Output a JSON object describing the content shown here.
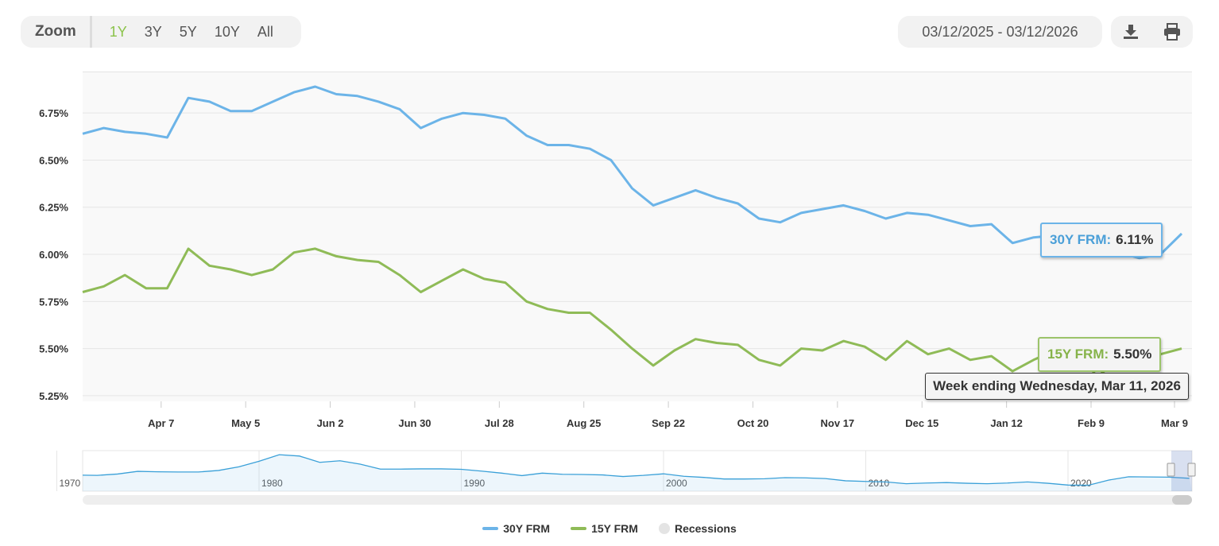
{
  "toolbar": {
    "zoom_label": "Zoom",
    "zoom_options": [
      "1Y",
      "3Y",
      "5Y",
      "10Y",
      "All"
    ],
    "active_zoom": "1Y",
    "date_range": "03/12/2025 - 03/12/2026",
    "download_icon": "download-icon",
    "print_icon": "print-icon"
  },
  "colors": {
    "series_30y": "#6cb4e8",
    "series_15y": "#8fbb57",
    "accent": "#8bc34a"
  },
  "tooltip": {
    "label_30y": "30Y FRM:",
    "value_30y": "6.11%",
    "label_15y": "15Y FRM:",
    "value_15y": "5.50%",
    "date": "Week ending Wednesday, Mar 11, 2026"
  },
  "legend": {
    "items": [
      "30Y FRM",
      "15Y FRM",
      "Recessions"
    ]
  },
  "chart_data": {
    "type": "line",
    "ylim": [
      5.22,
      6.97
    ],
    "y_ticks": [
      "5.25%",
      "5.50%",
      "5.75%",
      "6.00%",
      "6.25%",
      "6.50%",
      "6.75%"
    ],
    "y_tick_values": [
      5.25,
      5.5,
      5.75,
      6.0,
      6.25,
      6.5,
      6.75
    ],
    "x_start": "2025-03-12",
    "x_end": "2026-03-11",
    "x_step_days": 7,
    "x_ticks": [
      "Apr 7",
      "May 5",
      "Jun 2",
      "Jun 30",
      "Jul 28",
      "Aug 25",
      "Sep 22",
      "Oct 20",
      "Nov 17",
      "Dec 15",
      "Jan 12",
      "Feb 9",
      "Mar 9"
    ],
    "x_tick_dates": [
      "2025-04-07",
      "2025-05-05",
      "2025-06-02",
      "2025-06-30",
      "2025-07-28",
      "2025-08-25",
      "2025-09-22",
      "2025-10-20",
      "2025-11-17",
      "2025-12-15",
      "2026-01-12",
      "2026-02-09",
      "2026-03-09"
    ],
    "grid": true,
    "legend_position": "bottom",
    "series": [
      {
        "name": "30Y FRM",
        "values": [
          6.64,
          6.67,
          6.65,
          6.64,
          6.62,
          6.83,
          6.81,
          6.76,
          6.76,
          6.81,
          6.86,
          6.89,
          6.85,
          6.84,
          6.81,
          6.77,
          6.67,
          6.72,
          6.75,
          6.74,
          6.72,
          6.63,
          6.58,
          6.58,
          6.56,
          6.5,
          6.35,
          6.26,
          6.3,
          6.34,
          6.3,
          6.27,
          6.19,
          6.17,
          6.22,
          6.24,
          6.26,
          6.23,
          6.19,
          6.22,
          6.21,
          6.18,
          6.15,
          6.16,
          6.06,
          6.09,
          6.1,
          6.11,
          6.09,
          6.01,
          5.98,
          6.0,
          6.11
        ]
      },
      {
        "name": "15Y FRM",
        "values": [
          5.8,
          5.83,
          5.89,
          5.82,
          5.82,
          6.03,
          5.94,
          5.92,
          5.89,
          5.92,
          6.01,
          6.03,
          5.99,
          5.97,
          5.96,
          5.89,
          5.8,
          5.86,
          5.92,
          5.87,
          5.85,
          5.75,
          5.71,
          5.69,
          5.69,
          5.6,
          5.5,
          5.41,
          5.49,
          5.55,
          5.53,
          5.52,
          5.44,
          5.41,
          5.5,
          5.49,
          5.54,
          5.51,
          5.44,
          5.54,
          5.47,
          5.5,
          5.44,
          5.46,
          5.38,
          5.44,
          5.49,
          5.5,
          5.35,
          5.44,
          5.44,
          5.47,
          5.5
        ]
      }
    ],
    "navigator": {
      "x_ticks": [
        "1970",
        "1980",
        "1990",
        "2000",
        "2010",
        "2020"
      ],
      "years": [
        1971,
        1972,
        1973,
        1974,
        1975,
        1976,
        1977,
        1978,
        1979,
        1980,
        1981,
        1982,
        1983,
        1984,
        1985,
        1986,
        1987,
        1988,
        1989,
        1990,
        1991,
        1992,
        1993,
        1994,
        1995,
        1996,
        1997,
        1998,
        1999,
        2000,
        2001,
        2002,
        2003,
        2004,
        2005,
        2006,
        2007,
        2008,
        2009,
        2010,
        2011,
        2012,
        2013,
        2014,
        2015,
        2016,
        2017,
        2018,
        2019,
        2020,
        2021,
        2022,
        2023,
        2024,
        2025,
        2026
      ],
      "values": [
        7.5,
        7.4,
        8.0,
        9.2,
        9.0,
        8.9,
        8.9,
        9.6,
        11.2,
        13.7,
        16.6,
        16.0,
        13.2,
        13.9,
        12.4,
        10.2,
        10.2,
        10.3,
        10.3,
        10.1,
        9.3,
        8.4,
        7.3,
        8.4,
        7.9,
        7.8,
        7.6,
        6.9,
        7.4,
        8.1,
        7.0,
        6.5,
        5.8,
        5.8,
        5.9,
        6.4,
        6.3,
        6.0,
        5.0,
        4.7,
        4.5,
        3.7,
        4.0,
        4.2,
        3.9,
        3.7,
        4.0,
        4.5,
        3.9,
        3.1,
        3.0,
        5.3,
        6.8,
        6.7,
        6.6,
        6.1
      ]
    }
  }
}
